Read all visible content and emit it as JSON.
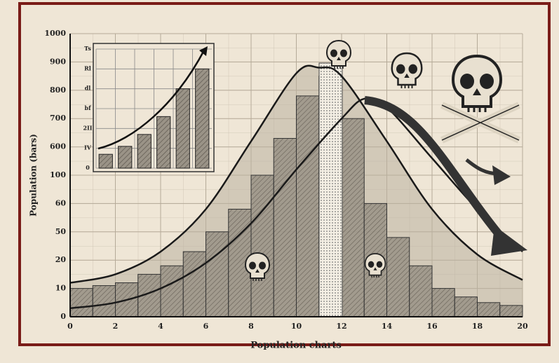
{
  "chart_data": [
    {
      "type": "histogram",
      "xlabel": "Population charts",
      "ylabel": "Population (bars)",
      "bins": [
        0,
        1,
        2,
        3,
        4,
        5,
        6,
        7,
        8,
        9,
        10,
        11,
        12,
        13,
        14,
        15,
        16,
        17,
        18,
        19,
        20
      ],
      "values": [
        100,
        110,
        120,
        150,
        180,
        230,
        300,
        380,
        500,
        630,
        780,
        850,
        700,
        400,
        280,
        180,
        100,
        70,
        50,
        40
      ],
      "color": "#8f887c",
      "series": [
        {
          "color": "#1a1a1a",
          "x": [
            0,
            2,
            4,
            6,
            8,
            10,
            11,
            12,
            14,
            16,
            18,
            20
          ],
          "values": [
            120,
            150,
            230,
            380,
            620,
            860,
            880,
            850,
            620,
            380,
            220,
            130
          ]
        },
        {
          "color": "#1a1a1a",
          "x": [
            0,
            2,
            4,
            6,
            8,
            10,
            12,
            13,
            14,
            16,
            18,
            20
          ],
          "values": [
            30,
            50,
            100,
            190,
            330,
            520,
            700,
            770,
            740,
            560,
            380,
            230
          ]
        }
      ],
      "xlim": [
        0,
        20
      ],
      "xticks": [
        0,
        2,
        4,
        6,
        8,
        10,
        12,
        14,
        16,
        18,
        20
      ],
      "ylim": [
        0,
        1000
      ],
      "yticks": [
        0,
        {
          "value": 100,
          "label": "10"
        },
        {
          "value": 200,
          "label": "20"
        },
        {
          "value": 300,
          "label": "50"
        },
        {
          "value": 400,
          "label": "60"
        },
        {
          "value": 500,
          "label": "100"
        },
        {
          "value": 600,
          "label": "600"
        },
        {
          "value": 700,
          "label": "700"
        },
        {
          "value": 800,
          "label": "800"
        },
        {
          "value": 900,
          "label": "900"
        },
        1000
      ],
      "grid": true
    },
    {
      "type": "bar",
      "categories": [
        null,
        null,
        null,
        null,
        null,
        null
      ],
      "values": [
        0.7,
        1.1,
        1.7,
        2.6,
        4.0,
        5.0
      ],
      "color": "#8f887c",
      "ylim": [
        0,
        6
      ],
      "yticks": [
        0,
        {
          "value": 1,
          "label": "IV"
        },
        {
          "value": 2,
          "label": "2II"
        },
        {
          "value": 3,
          "label": "bf"
        },
        {
          "value": 4,
          "label": "dl"
        },
        {
          "value": 5,
          "label": "Rl"
        },
        {
          "value": 6,
          "label": "Ts"
        }
      ],
      "grid": true
    }
  ]
}
